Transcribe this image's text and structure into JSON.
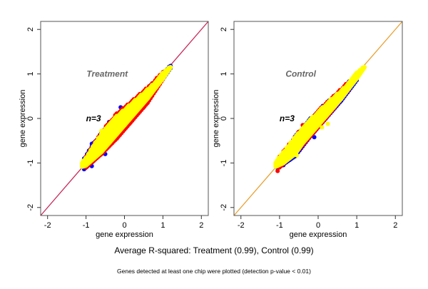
{
  "footer": {
    "summary": "Average R-squared: Treatment (0.99), Control (0.99)",
    "note": "Genes detected at least one chip were plotted (detection p-value < 0.01)"
  },
  "colors": {
    "yellow": "#ffff00",
    "red": "#ff0000",
    "blue": "#0000ff",
    "text_label": "#666666"
  },
  "chart_data": [
    {
      "type": "scatter",
      "title": "Treatment",
      "annotation": "n=3",
      "xlabel": "gene expression",
      "ylabel": "gene expression",
      "xlim": [
        -2.18,
        2.18
      ],
      "ylim": [
        -2.18,
        2.18
      ],
      "xticks": [
        "-2",
        "-1",
        "0",
        "1",
        "2"
      ],
      "yticks": [
        "-2",
        "-1",
        "0",
        "1",
        "2"
      ],
      "reference_line": {
        "slope": 1,
        "intercept": 0,
        "color": "#c8285a"
      },
      "series": [
        {
          "color": "#0000ff",
          "band": [
            [
              -1.05,
              -1.14,
              -0.9
            ],
            [
              -0.8,
              -0.95,
              -0.55
            ],
            [
              -0.4,
              -0.6,
              -0.1
            ],
            [
              0,
              -0.2,
              0.22
            ],
            [
              0.4,
              0.2,
              0.52
            ],
            [
              0.8,
              0.64,
              0.85
            ],
            [
              1.2,
              1.13,
              1.2
            ]
          ],
          "points": [
            [
              -0.1,
              0.25
            ],
            [
              -0.4,
              -0.08
            ],
            [
              -0.85,
              -0.57
            ],
            [
              -1.05,
              -1.12
            ],
            [
              -0.85,
              -1.07
            ],
            [
              -0.5,
              -0.8
            ],
            [
              1.2,
              1.18
            ]
          ]
        },
        {
          "color": "#ff0000",
          "band": [
            [
              -1.0,
              -1.1,
              -0.85
            ],
            [
              -0.6,
              -0.8,
              -0.3
            ],
            [
              -0.2,
              -0.45,
              0.12
            ],
            [
              0.2,
              -0.05,
              0.4
            ],
            [
              0.6,
              0.35,
              0.7
            ],
            [
              1.0,
              0.88,
              1.05
            ]
          ],
          "points": [
            [
              -0.08,
              0.15
            ],
            [
              -0.2,
              0.05
            ],
            [
              -0.35,
              -0.25
            ],
            [
              0.5,
              0.25
            ],
            [
              0.45,
              0.3
            ],
            [
              -0.6,
              -0.7
            ],
            [
              0.15,
              -0.1
            ]
          ]
        },
        {
          "color": "#ffff00",
          "band": [
            [
              -1.1,
              -1.08,
              -0.98
            ],
            [
              -1.0,
              -1.05,
              -0.88
            ],
            [
              -0.8,
              -0.9,
              -0.6
            ],
            [
              -0.6,
              -0.75,
              -0.35
            ],
            [
              -0.4,
              -0.55,
              -0.15
            ],
            [
              -0.2,
              -0.35,
              0.05
            ],
            [
              0,
              -0.15,
              0.2
            ],
            [
              0.2,
              0.05,
              0.35
            ],
            [
              0.4,
              0.25,
              0.5
            ],
            [
              0.6,
              0.45,
              0.65
            ],
            [
              0.8,
              0.68,
              0.82
            ],
            [
              1.0,
              0.9,
              1.02
            ],
            [
              1.2,
              1.15,
              1.18
            ]
          ],
          "points": [
            [
              -0.6,
              -0.28
            ]
          ]
        }
      ]
    },
    {
      "type": "scatter",
      "title": "Control",
      "annotation": "n=3",
      "xlabel": "gene expression",
      "ylabel": "gene expression",
      "xlim": [
        -2.18,
        2.18
      ],
      "ylim": [
        -2.18,
        2.18
      ],
      "xticks": [
        "-2",
        "-1",
        "0",
        "1",
        "2"
      ],
      "yticks": [
        "-2",
        "-1",
        "0",
        "1",
        "2"
      ],
      "reference_line": {
        "slope": 1,
        "intercept": 0,
        "color": "#e8a030"
      },
      "series": [
        {
          "color": "#0000ff",
          "band": [
            [
              -1.05,
              -1.12,
              -0.95
            ],
            [
              -0.6,
              -0.85,
              -0.4
            ],
            [
              -0.2,
              -0.4,
              0.0
            ],
            [
              0.2,
              0.0,
              0.35
            ],
            [
              0.6,
              0.4,
              0.64
            ],
            [
              1.0,
              0.86,
              1.03
            ]
          ],
          "points": [
            [
              -0.1,
              -0.42
            ],
            [
              0.45,
              0.28
            ],
            [
              -0.6,
              -0.45
            ],
            [
              -0.9,
              -1.05
            ]
          ]
        },
        {
          "color": "#ff0000",
          "band": [
            [
              -1.0,
              -1.1,
              -0.85
            ],
            [
              -0.5,
              -0.7,
              -0.3
            ],
            [
              0,
              -0.2,
              0.18
            ],
            [
              0.4,
              0.22,
              0.5
            ],
            [
              0.8,
              0.66,
              0.84
            ]
          ],
          "points": [
            [
              -0.55,
              -0.6
            ],
            [
              -0.4,
              -0.15
            ],
            [
              -1.05,
              -1.18
            ],
            [
              0.05,
              0.1
            ]
          ]
        },
        {
          "color": "#ffff00",
          "band": [
            [
              -1.1,
              -1.08,
              -0.98
            ],
            [
              -0.9,
              -1.0,
              -0.75
            ],
            [
              -0.6,
              -0.8,
              -0.42
            ],
            [
              -0.4,
              -0.55,
              -0.22
            ],
            [
              -0.2,
              -0.35,
              -0.02
            ],
            [
              0,
              -0.15,
              0.15
            ],
            [
              0.2,
              0.05,
              0.32
            ],
            [
              0.4,
              0.25,
              0.48
            ],
            [
              0.6,
              0.45,
              0.62
            ],
            [
              0.8,
              0.68,
              0.82
            ],
            [
              1.0,
              0.9,
              1.02
            ],
            [
              1.2,
              1.15,
              1.18
            ]
          ],
          "points": [
            [
              0.25,
              -0.12
            ],
            [
              0.1,
              -0.2
            ],
            [
              -0.55,
              -0.83
            ]
          ]
        }
      ]
    }
  ]
}
